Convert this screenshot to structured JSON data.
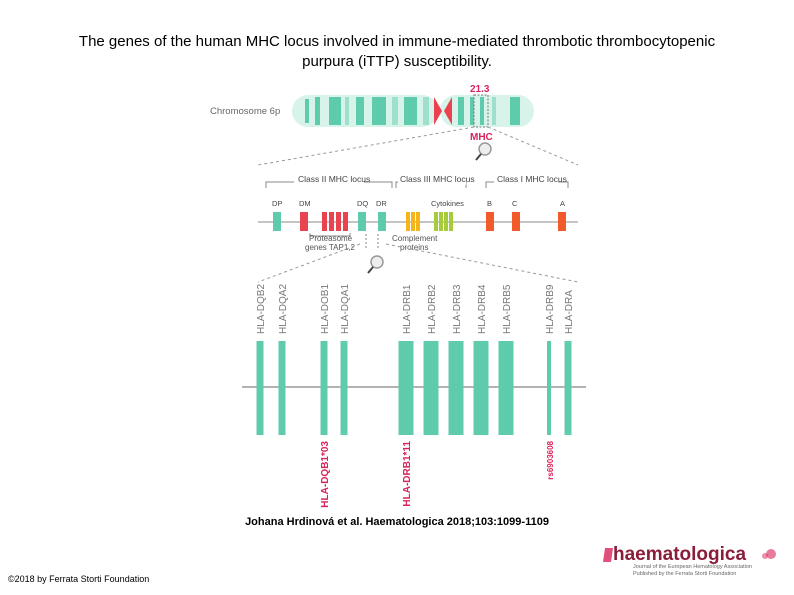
{
  "title_line1": "The genes of the human MHC locus involved in immune-mediated thrombotic thrombocytopenic",
  "title_line2": "purpura (iTTP) susceptibility.",
  "diagram": {
    "chromosome_label": "Chromosome 6p",
    "band_label": "21.3",
    "mhc_label": "MHC",
    "class_ii_label": "Class II MHC locus",
    "class_iii_label": "Class III MHC locus",
    "class_i_label": "Class I MHC locus",
    "gene_dp": "DP",
    "gene_dm": "DM",
    "gene_dq": "DQ",
    "gene_dr": "DR",
    "cytokines": "Cytokines",
    "gene_b": "B",
    "gene_c": "C",
    "gene_a": "A",
    "proteasome_line1": "Proteasome",
    "proteasome_line2": "genes TAP1,2",
    "complement_line1": "Complement",
    "complement_line2": "proteins",
    "genes": [
      "HLA-DQB2",
      "HLA-DQA2",
      "HLA-DOB1",
      "HLA-DQA1",
      "HLA-DRB1",
      "HLA-DRB2",
      "HLA-DRB3",
      "HLA-DRB4",
      "HLA-DRB5",
      "HLA-DRB9",
      "HLA-DRA"
    ],
    "risk_alleles": [
      "HLA-DQB1*03",
      "HLA-DRB1*11",
      "rs6903608"
    ]
  },
  "colors": {
    "teal": "#5ecbac",
    "red": "#e8434f",
    "orange": "#f15a2b",
    "yellow": "#f5b41a",
    "green": "#a6cc3c",
    "crimson": "#d8245a"
  },
  "citation": "Johana Hrdinová et al. Haematologica 2018;103:1099-1109",
  "copyright": "©2018 by Ferrata Storti Foundation",
  "logo": {
    "name": "haematologica",
    "tagline1": "Journal of the European Hematology Association",
    "tagline2": "Published by the Ferrata Storti Foundation"
  }
}
